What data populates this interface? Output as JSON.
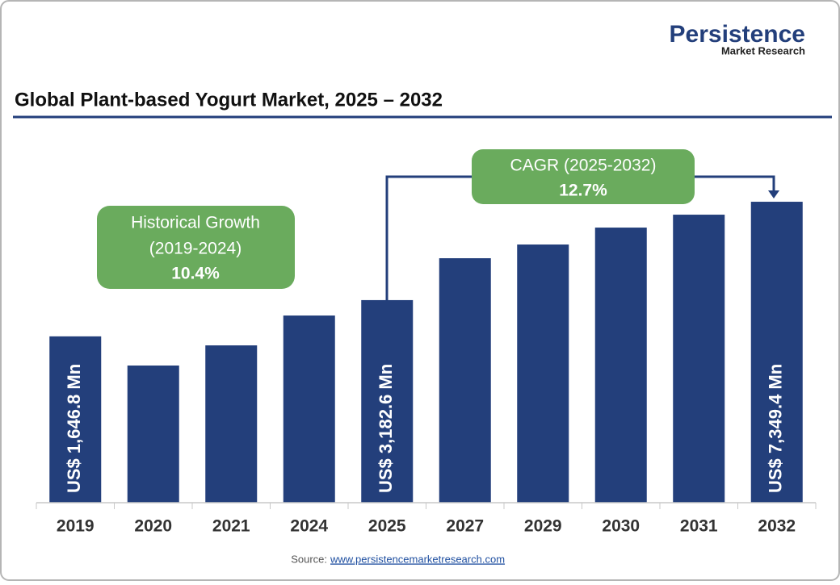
{
  "logo": {
    "name": "Persistence",
    "tagline": "Market Research"
  },
  "chart_data": {
    "type": "bar",
    "title": "Global Plant-based Yogurt Market, 2025 – 2032",
    "categories": [
      "2019",
      "2020",
      "2021",
      "2024",
      "2025",
      "2027",
      "2029",
      "2030",
      "2031",
      "2032"
    ],
    "values": [
      1646.8,
      411,
      1265,
      2530,
      3182.6,
      4957,
      5538,
      6255,
      6802,
      7349.4
    ],
    "value_labels": [
      "US$ 1,646.8 Mn",
      null,
      null,
      null,
      "US$ 3,182.6 Mn",
      null,
      null,
      null,
      null,
      "US$ 7,349.4 Mn"
    ],
    "color": "#233f7b",
    "ylim": [
      -5400,
      8000
    ],
    "annotations": {
      "historical": {
        "label": "Historical Growth",
        "period": "(2019-2024)",
        "value": "10.4%"
      },
      "cagr": {
        "label": "CAGR (2025-2032)",
        "value": "12.7%"
      }
    }
  },
  "source": {
    "label": "Source:",
    "url": "www.persistencemarketresearch.com"
  }
}
